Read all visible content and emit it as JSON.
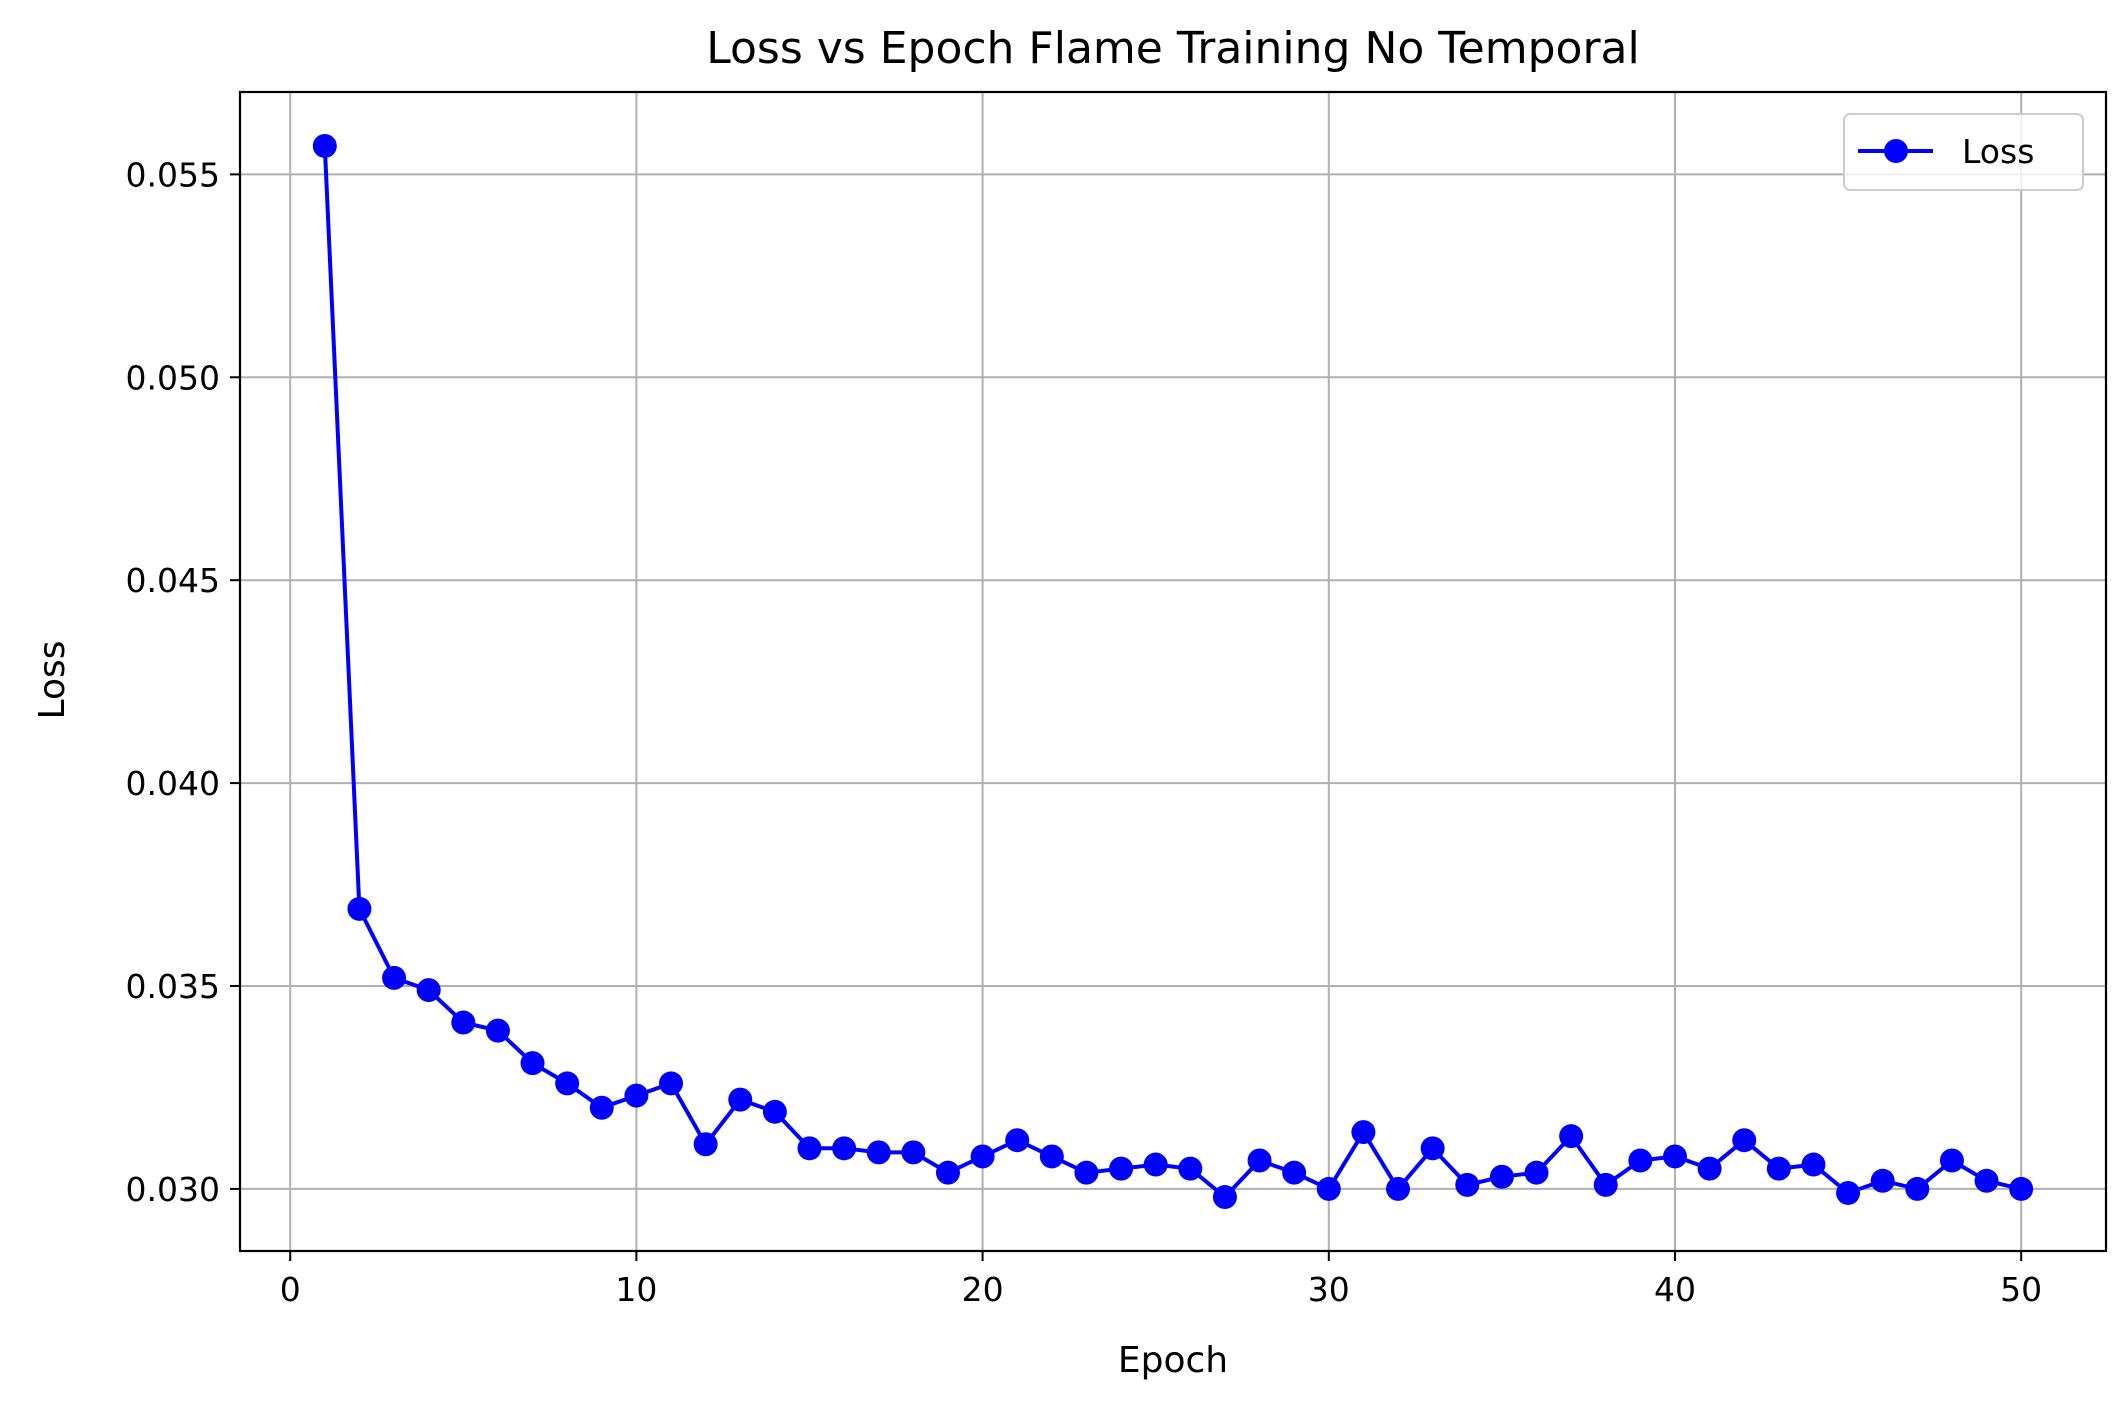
{
  "chart_data": {
    "type": "line",
    "title": "Loss vs Epoch Flame Training No Temporal",
    "xlabel": "Epoch",
    "ylabel": "Loss",
    "xlim": [
      -1.45,
      52.45
    ],
    "ylim": [
      0.02847,
      0.05703
    ],
    "xticks": [
      0,
      10,
      20,
      30,
      40,
      50
    ],
    "xtick_labels": [
      "0",
      "10",
      "20",
      "30",
      "40",
      "50"
    ],
    "yticks": [
      0.03,
      0.035,
      0.04,
      0.045,
      0.05,
      0.055
    ],
    "ytick_labels": [
      "0.030",
      "0.035",
      "0.040",
      "0.045",
      "0.050",
      "0.055"
    ],
    "grid": true,
    "legend_position": "top-right",
    "series": [
      {
        "name": "Loss",
        "color": "#0000ff",
        "marker": "circle",
        "x": [
          1,
          2,
          3,
          4,
          5,
          6,
          7,
          8,
          9,
          10,
          11,
          12,
          13,
          14,
          15,
          16,
          17,
          18,
          19,
          20,
          21,
          22,
          23,
          24,
          25,
          26,
          27,
          28,
          29,
          30,
          31,
          32,
          33,
          34,
          35,
          36,
          37,
          38,
          39,
          40,
          41,
          42,
          43,
          44,
          45,
          46,
          47,
          48,
          49,
          50
        ],
        "values": [
          0.0557,
          0.0369,
          0.0352,
          0.0349,
          0.0341,
          0.0339,
          0.0331,
          0.0326,
          0.032,
          0.0323,
          0.0326,
          0.0311,
          0.0322,
          0.0319,
          0.031,
          0.031,
          0.0309,
          0.0309,
          0.0304,
          0.0308,
          0.0312,
          0.0308,
          0.0304,
          0.0305,
          0.0306,
          0.0305,
          0.0298,
          0.0307,
          0.0304,
          0.03,
          0.0314,
          0.03,
          0.031,
          0.0301,
          0.0303,
          0.0304,
          0.0313,
          0.0301,
          0.0307,
          0.0308,
          0.0305,
          0.0312,
          0.0305,
          0.0306,
          0.0299,
          0.0302,
          0.03,
          0.0307,
          0.0302,
          0.03
        ]
      }
    ]
  }
}
